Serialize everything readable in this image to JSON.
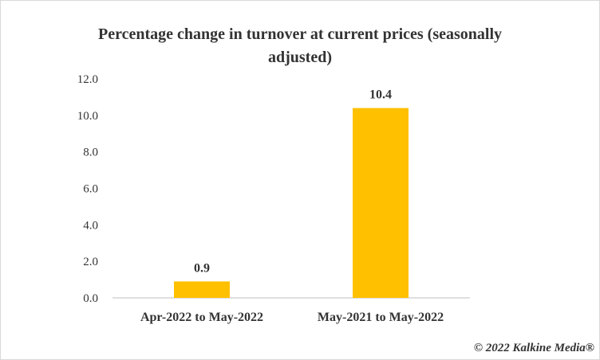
{
  "chart_data": {
    "type": "bar",
    "title": [
      "Percentage change in turnover at current prices (seasonally",
      "adjusted)"
    ],
    "categories": [
      "Apr-2022 to May-2022",
      "May-2021 to May-2022"
    ],
    "values": [
      0.9,
      10.4
    ],
    "value_labels": [
      "0.9",
      "10.4"
    ],
    "yticks": [
      "0.0",
      "2.0",
      "4.0",
      "6.0",
      "8.0",
      "10.0",
      "12.0"
    ],
    "ylim": [
      0,
      12
    ],
    "grid": false,
    "bar_color": "#FFC000",
    "axis_color": "#bfbfbf",
    "text_color": "#333333"
  },
  "credit": "© 2022 Kalkine Media®"
}
